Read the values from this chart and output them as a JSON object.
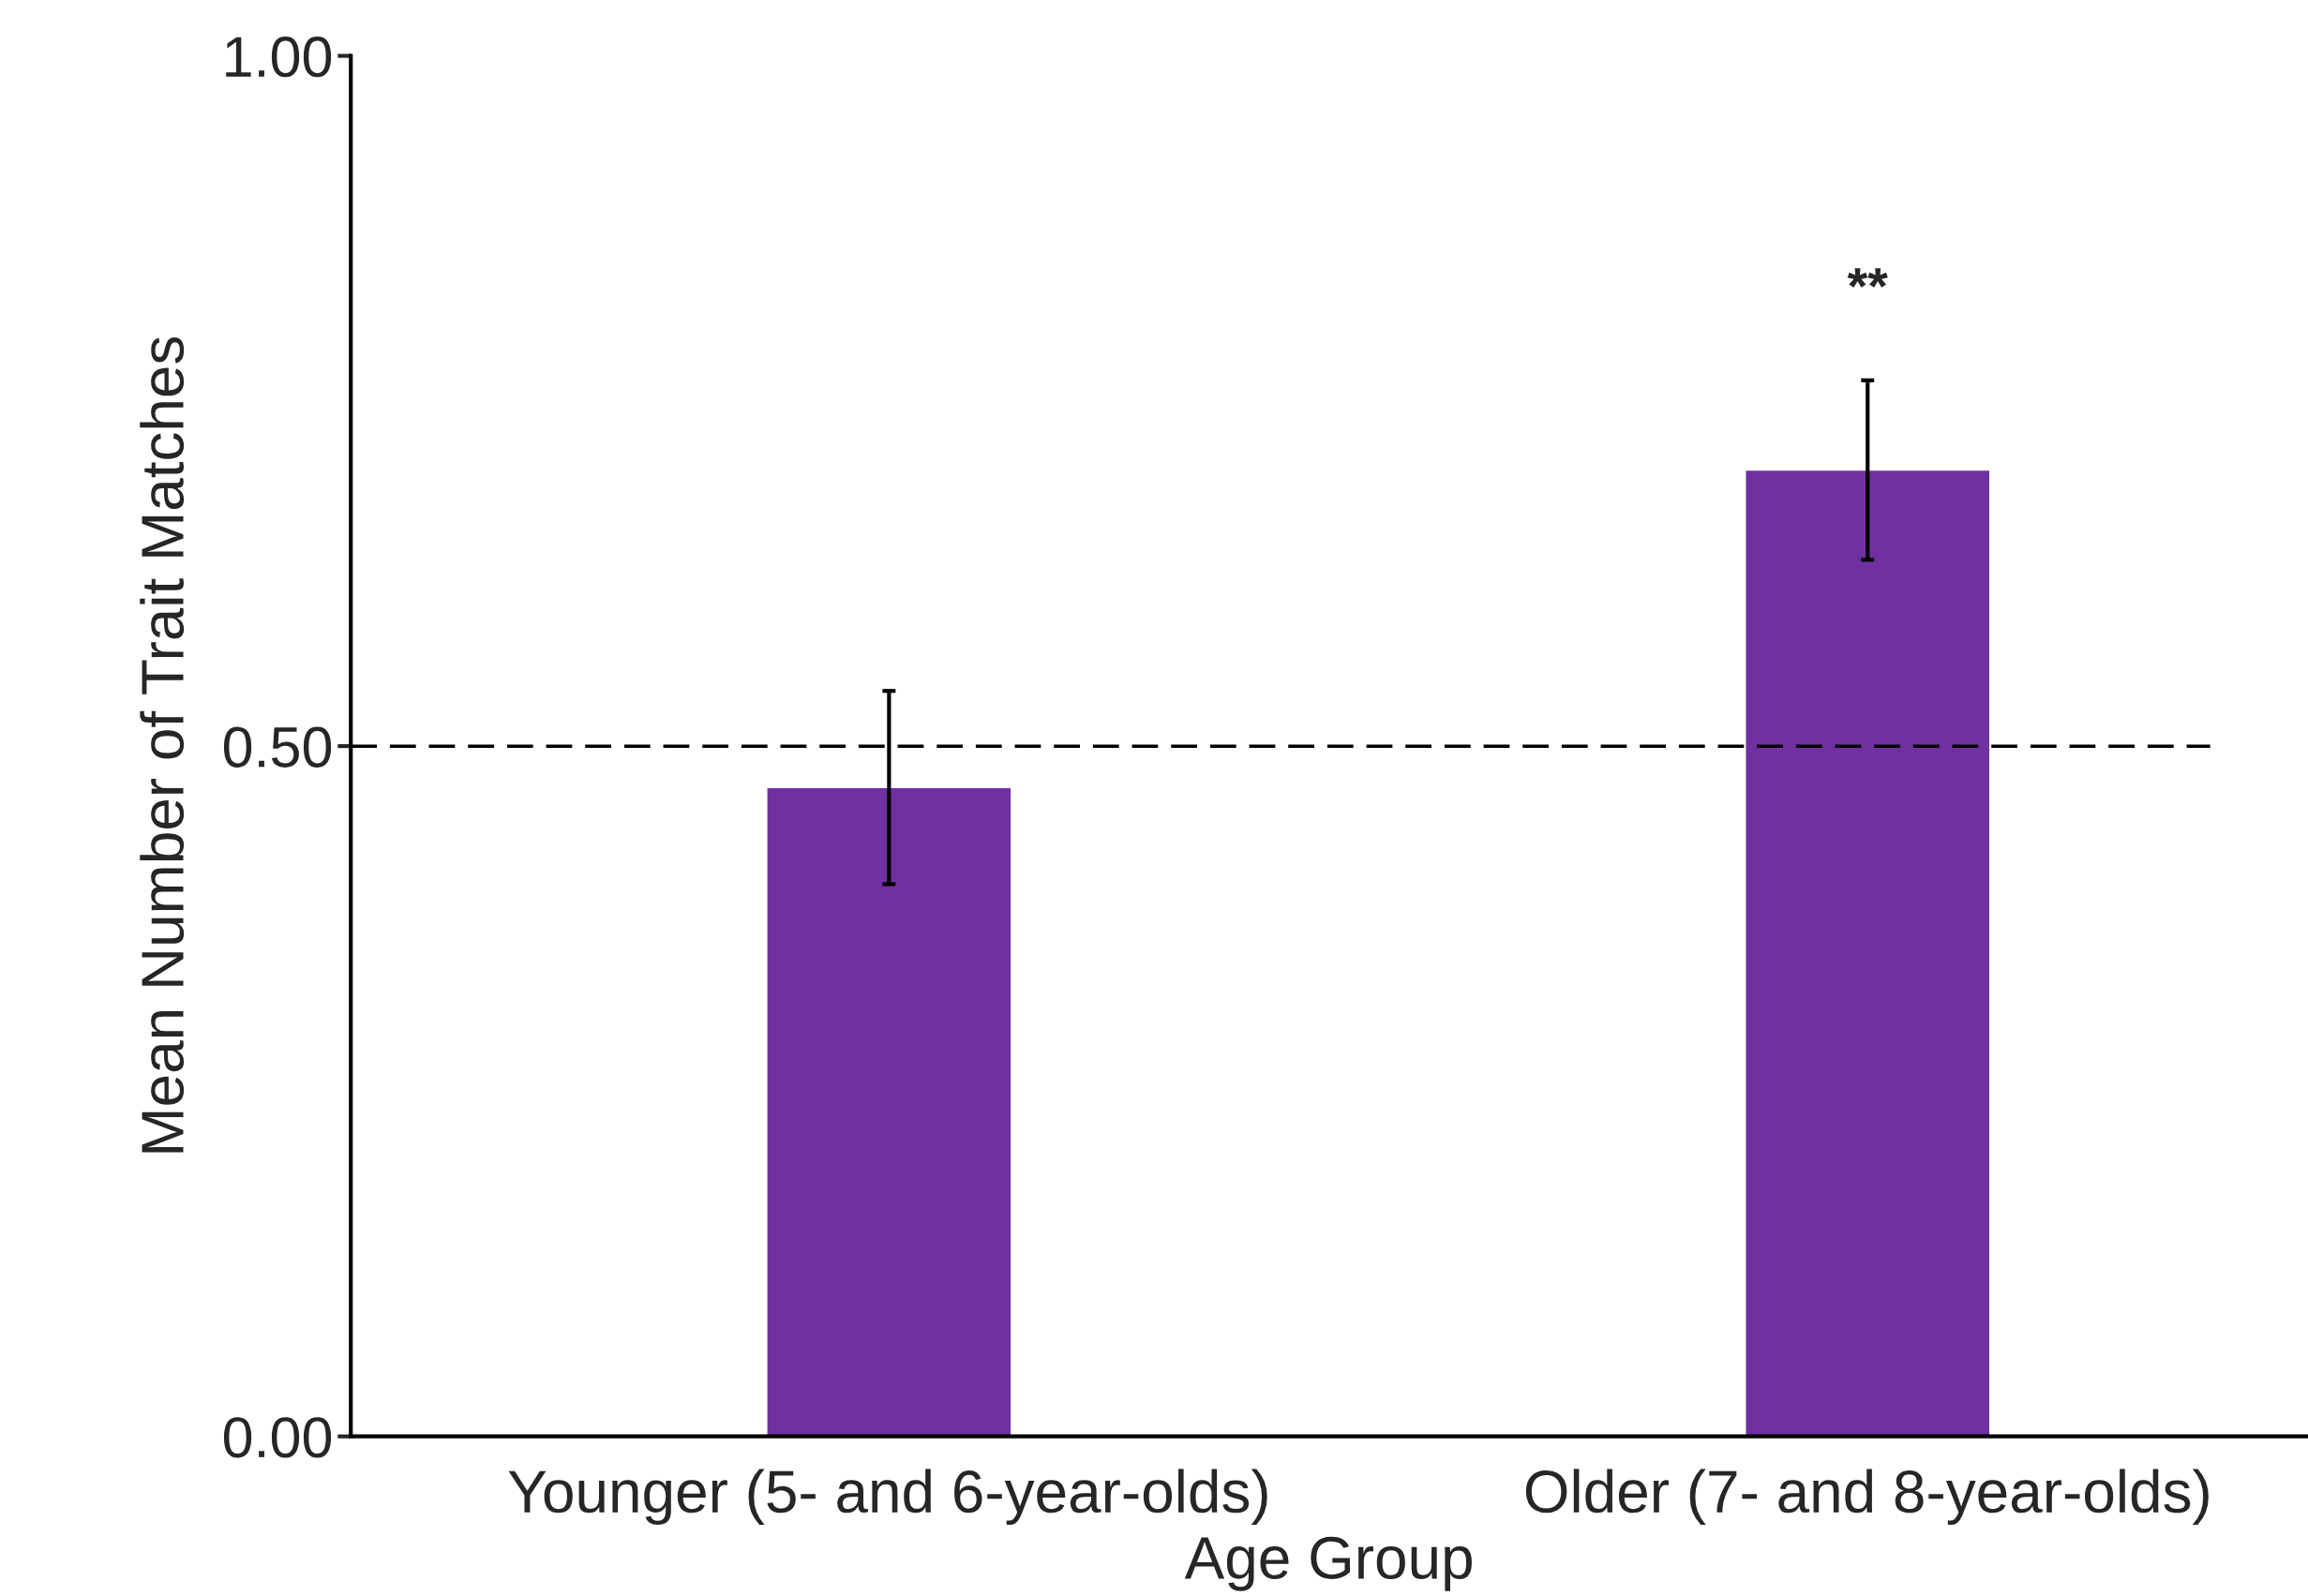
{
  "chart_data": {
    "type": "bar",
    "xlabel": "Age Group",
    "ylabel": "Mean Number of Trait Matches",
    "categories": [
      "Younger (5- and 6-year-olds)",
      "Older (7- and 8-year-olds)"
    ],
    "values": [
      0.47,
      0.7
    ],
    "color": "#7030a0",
    "errors": [
      0.07,
      0.065
    ],
    "ylim": [
      0,
      1
    ],
    "yticks": [
      {
        "value": 0,
        "label": "0.00"
      },
      {
        "value": 0.5,
        "label": "0.50"
      },
      {
        "value": 1,
        "label": "1.00"
      }
    ],
    "ref_lines": [
      {
        "axis": "y",
        "value": 0.5,
        "color": "#000000",
        "line_style": "dashed"
      }
    ],
    "annotations": [
      "**"
    ],
    "grid": false
  }
}
